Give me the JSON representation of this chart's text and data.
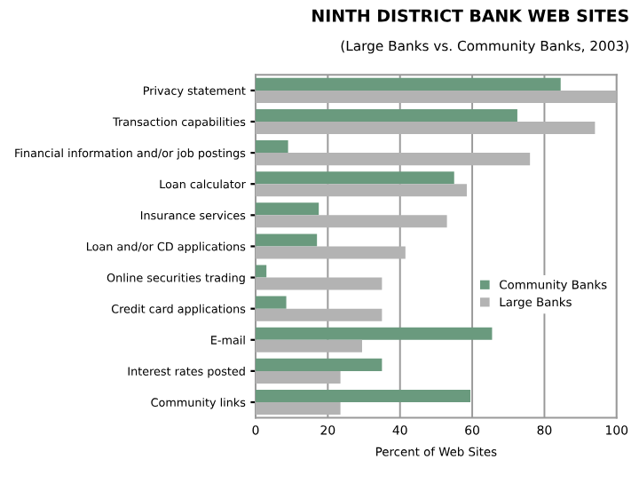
{
  "chart_data": {
    "type": "bar",
    "orientation": "horizontal",
    "title": "NINTH DISTRICT BANK WEB SITES",
    "subtitle": "(Large Banks vs. Community Banks, 2003)",
    "xlabel": "Percent of Web Sites",
    "categories": [
      "Privacy statement",
      "Transaction capabilities",
      "Financial information and/or job postings",
      "Loan calculator",
      "Insurance services",
      "Loan and/or CD applications",
      "Online securities trading",
      "Credit card applications",
      "E-mail",
      "Interest rates posted",
      "Community links"
    ],
    "series": [
      {
        "name": "Community Banks",
        "color": "#6a9a7e",
        "values": [
          84.5,
          72.5,
          9,
          55,
          17.5,
          17,
          3,
          8.5,
          65.5,
          35,
          59.5
        ]
      },
      {
        "name": "Large Banks",
        "color": "#b3b3b3",
        "values": [
          100,
          94,
          76,
          58.5,
          53,
          41.5,
          35,
          35,
          29.5,
          23.5,
          23.5
        ]
      }
    ],
    "xlim": [
      0,
      100
    ],
    "xticks": [
      0,
      20,
      40,
      60,
      80,
      100
    ],
    "grid": "x",
    "legend": "right"
  }
}
